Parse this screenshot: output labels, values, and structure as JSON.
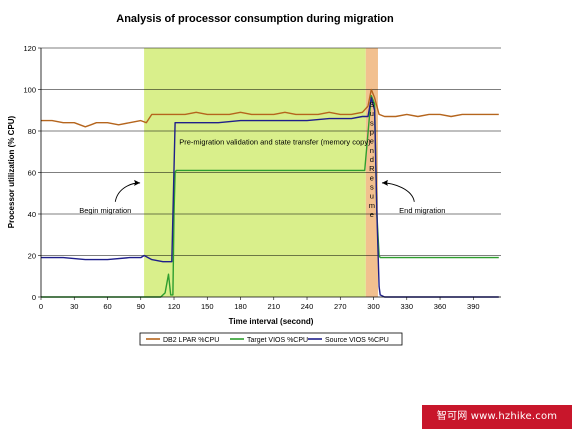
{
  "chart_data": {
    "type": "line",
    "title": "Analysis of processor consumption during migration",
    "xlabel": "Time interval (second)",
    "ylabel": "Processor utilization (% CPU)",
    "xlim": [
      0,
      415
    ],
    "ylim": [
      0,
      120
    ],
    "xticks": [
      0,
      30,
      60,
      90,
      120,
      150,
      180,
      210,
      240,
      270,
      300,
      330,
      360,
      390
    ],
    "yticks": [
      0,
      20,
      40,
      60,
      80,
      100,
      120
    ],
    "grid": "horizontal",
    "legend_position": "bottom",
    "shaded_regions": [
      {
        "x": [
          93,
          293
        ],
        "color": "#d9ef8b",
        "label": "Pre-migration validation and state transfer (memory copy)"
      },
      {
        "x": [
          293,
          304
        ],
        "color": "#f2c08f",
        "label": "Suspend Resume"
      }
    ],
    "annotations": [
      {
        "text": "Begin migration",
        "x": 58,
        "y": 42
      },
      {
        "text": "End migration",
        "x": 344,
        "y": 42
      }
    ],
    "series": [
      {
        "name": "DB2 LPAR %CPU",
        "color": "#b5651d",
        "x": [
          0,
          10,
          20,
          30,
          40,
          45,
          50,
          60,
          70,
          80,
          90,
          95,
          100,
          110,
          120,
          130,
          140,
          150,
          160,
          170,
          180,
          190,
          200,
          210,
          220,
          230,
          240,
          250,
          260,
          270,
          280,
          290,
          295,
          298,
          301,
          305,
          310,
          320,
          330,
          340,
          350,
          360,
          370,
          380,
          390,
          400,
          413
        ],
        "values": [
          85,
          85,
          84,
          84,
          82,
          83,
          84,
          84,
          83,
          84,
          85,
          84,
          88,
          88,
          88,
          88,
          89,
          88,
          88,
          88,
          89,
          88,
          88,
          88,
          89,
          88,
          88,
          88,
          89,
          88,
          88,
          89,
          92,
          100,
          96,
          88,
          87,
          87,
          88,
          87,
          88,
          88,
          87,
          88,
          88,
          88,
          88
        ]
      },
      {
        "name": "Target VIOS %CPU",
        "color": "#2e9e2e",
        "x": [
          0,
          30,
          60,
          90,
          93,
          100,
          108,
          112,
          115,
          117,
          119,
          120,
          121,
          122,
          125,
          140,
          160,
          180,
          200,
          220,
          240,
          260,
          270,
          280,
          290,
          292,
          298,
          301,
          303,
          305,
          306,
          308,
          320,
          350,
          380,
          413
        ],
        "values": [
          0,
          0,
          0,
          0,
          0,
          0,
          0,
          2,
          11,
          1,
          1,
          40,
          60,
          61,
          61,
          61,
          61,
          61,
          61,
          61,
          61,
          61,
          61,
          61,
          61,
          61,
          97,
          93,
          40,
          20,
          19,
          19,
          19,
          19,
          19,
          19
        ]
      },
      {
        "name": "Source VIOS %CPU",
        "color": "#1f1f8a",
        "x": [
          0,
          20,
          40,
          60,
          80,
          90,
          93,
          100,
          110,
          115,
          118,
          121,
          125,
          140,
          160,
          180,
          200,
          220,
          240,
          260,
          280,
          290,
          295,
          298,
          301,
          303,
          305,
          306,
          310,
          340,
          370,
          413
        ],
        "values": [
          19,
          19,
          18,
          18,
          19,
          19,
          20,
          18,
          17,
          17,
          17,
          84,
          84,
          84,
          84,
          85,
          85,
          85,
          85,
          86,
          86,
          87,
          87,
          96,
          90,
          40,
          5,
          1,
          0,
          0,
          0,
          0
        ]
      }
    ]
  }
}
